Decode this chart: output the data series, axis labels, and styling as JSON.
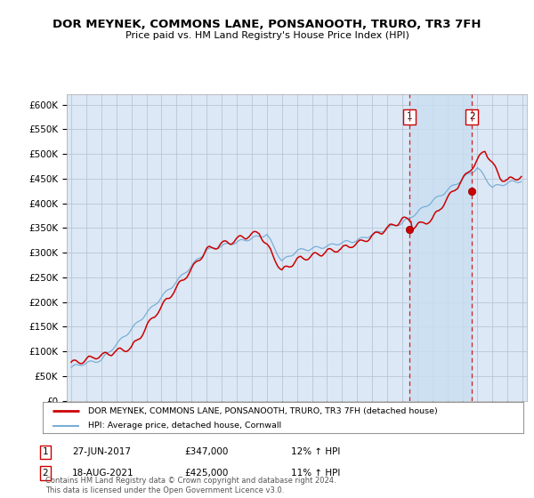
{
  "title": "DOR MEYNEK, COMMONS LANE, PONSANOOTH, TRURO, TR3 7FH",
  "subtitle": "Price paid vs. HM Land Registry's House Price Index (HPI)",
  "ylabel_ticks": [
    "£0",
    "£50K",
    "£100K",
    "£150K",
    "£200K",
    "£250K",
    "£300K",
    "£350K",
    "£400K",
    "£450K",
    "£500K",
    "£550K",
    "£600K"
  ],
  "ylim": [
    0,
    620000
  ],
  "yticks": [
    0,
    50000,
    100000,
    150000,
    200000,
    250000,
    300000,
    350000,
    400000,
    450000,
    500000,
    550000,
    600000
  ],
  "background_color": "#dce8f5",
  "shade_color": "#ccddf0",
  "grid_color": "#b0bfd0",
  "sale1_date": 2017.5,
  "sale1_price": 347000,
  "sale2_date": 2021.625,
  "sale2_price": 425000,
  "legend1": "DOR MEYNEK, COMMONS LANE, PONSANOOTH, TRURO, TR3 7FH (detached house)",
  "legend2": "HPI: Average price, detached house, Cornwall",
  "annotation1_date": "27-JUN-2017",
  "annotation1_price": "£347,000",
  "annotation1_hpi": "12% ↑ HPI",
  "annotation2_date": "18-AUG-2021",
  "annotation2_price": "£425,000",
  "annotation2_hpi": "11% ↑ HPI",
  "footer": "Contains HM Land Registry data © Crown copyright and database right 2024.\nThis data is licensed under the Open Government Licence v3.0.",
  "line_red": "#cc0000",
  "line_blue": "#7aaed6"
}
